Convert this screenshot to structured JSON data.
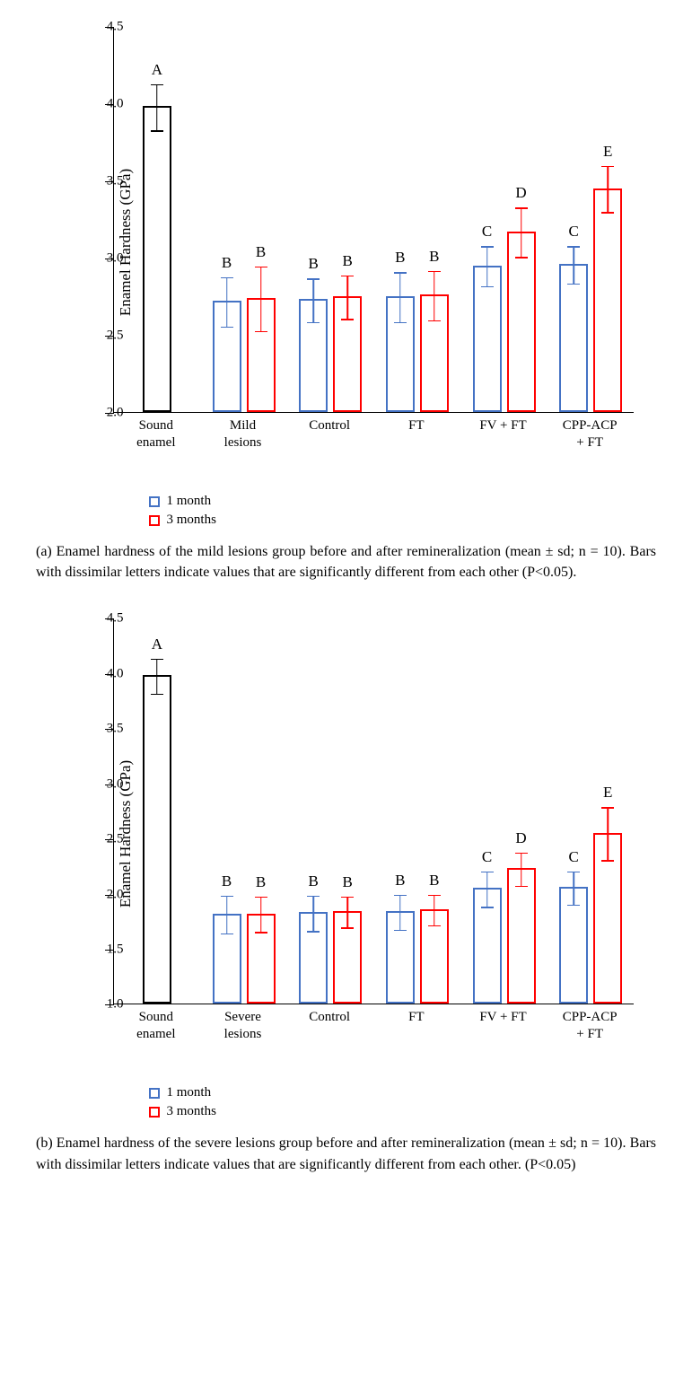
{
  "colors": {
    "black": "#000000",
    "blue": "#4472c4",
    "red": "#ff0000"
  },
  "legend": {
    "m1": "1 month",
    "m3": "3 months"
  },
  "chart_a": {
    "ylabel": "Enamel Hardness (GPa)",
    "ylim": [
      2.0,
      4.5
    ],
    "ytick_step": 0.5,
    "categories": [
      "Sound\nenamel",
      "Mild\nlesions",
      "Control",
      "FT",
      "FV + FT",
      "CPP-ACP\n+ FT"
    ],
    "series": [
      {
        "cat": 0,
        "color": "black",
        "value": 3.98,
        "err": 0.15,
        "letter": "A"
      },
      {
        "cat": 1,
        "color": "blue",
        "value": 2.72,
        "err": 0.16,
        "letter": "B"
      },
      {
        "cat": 1,
        "color": "red",
        "value": 2.74,
        "err": 0.21,
        "letter": "B"
      },
      {
        "cat": 2,
        "color": "blue",
        "value": 2.73,
        "err": 0.14,
        "letter": "B"
      },
      {
        "cat": 2,
        "color": "red",
        "value": 2.75,
        "err": 0.14,
        "letter": "B"
      },
      {
        "cat": 3,
        "color": "blue",
        "value": 2.75,
        "err": 0.16,
        "letter": "B"
      },
      {
        "cat": 3,
        "color": "red",
        "value": 2.76,
        "err": 0.16,
        "letter": "B"
      },
      {
        "cat": 4,
        "color": "blue",
        "value": 2.95,
        "err": 0.13,
        "letter": "C"
      },
      {
        "cat": 4,
        "color": "red",
        "value": 3.17,
        "err": 0.16,
        "letter": "D"
      },
      {
        "cat": 5,
        "color": "blue",
        "value": 2.96,
        "err": 0.12,
        "letter": "C"
      },
      {
        "cat": 5,
        "color": "red",
        "value": 3.45,
        "err": 0.15,
        "letter": "E"
      }
    ],
    "caption": "(a)  Enamel hardness of the mild lesions group before and after remineralization (mean ± sd; n = 10). Bars with dissimilar letters indicate values that are significantly different from each other (P<0.05)."
  },
  "chart_b": {
    "ylabel": "Enamel Hardness (GPa)",
    "ylim": [
      1.0,
      4.5
    ],
    "ytick_step": 0.5,
    "categories": [
      "Sound\nenamel",
      "Severe\nlesions",
      "Control",
      "FT",
      "FV + FT",
      "CPP-ACP\n+ FT"
    ],
    "series": [
      {
        "cat": 0,
        "color": "black",
        "value": 3.98,
        "err": 0.16,
        "letter": "A"
      },
      {
        "cat": 1,
        "color": "blue",
        "value": 1.82,
        "err": 0.17,
        "letter": "B"
      },
      {
        "cat": 1,
        "color": "red",
        "value": 1.82,
        "err": 0.16,
        "letter": "B"
      },
      {
        "cat": 2,
        "color": "blue",
        "value": 1.83,
        "err": 0.16,
        "letter": "B"
      },
      {
        "cat": 2,
        "color": "red",
        "value": 1.84,
        "err": 0.14,
        "letter": "B"
      },
      {
        "cat": 3,
        "color": "blue",
        "value": 1.84,
        "err": 0.16,
        "letter": "B"
      },
      {
        "cat": 3,
        "color": "red",
        "value": 1.86,
        "err": 0.14,
        "letter": "B"
      },
      {
        "cat": 4,
        "color": "blue",
        "value": 2.05,
        "err": 0.16,
        "letter": "C"
      },
      {
        "cat": 4,
        "color": "red",
        "value": 2.23,
        "err": 0.15,
        "letter": "D"
      },
      {
        "cat": 5,
        "color": "blue",
        "value": 2.06,
        "err": 0.15,
        "letter": "C"
      },
      {
        "cat": 5,
        "color": "red",
        "value": 2.55,
        "err": 0.24,
        "letter": "E"
      }
    ],
    "caption": "(b)  Enamel hardness of the severe lesions group before and after remineralization (mean ± sd; n = 10). Bars with dissimilar letters indicate values that are significantly different from each other. (P<0.05)"
  }
}
